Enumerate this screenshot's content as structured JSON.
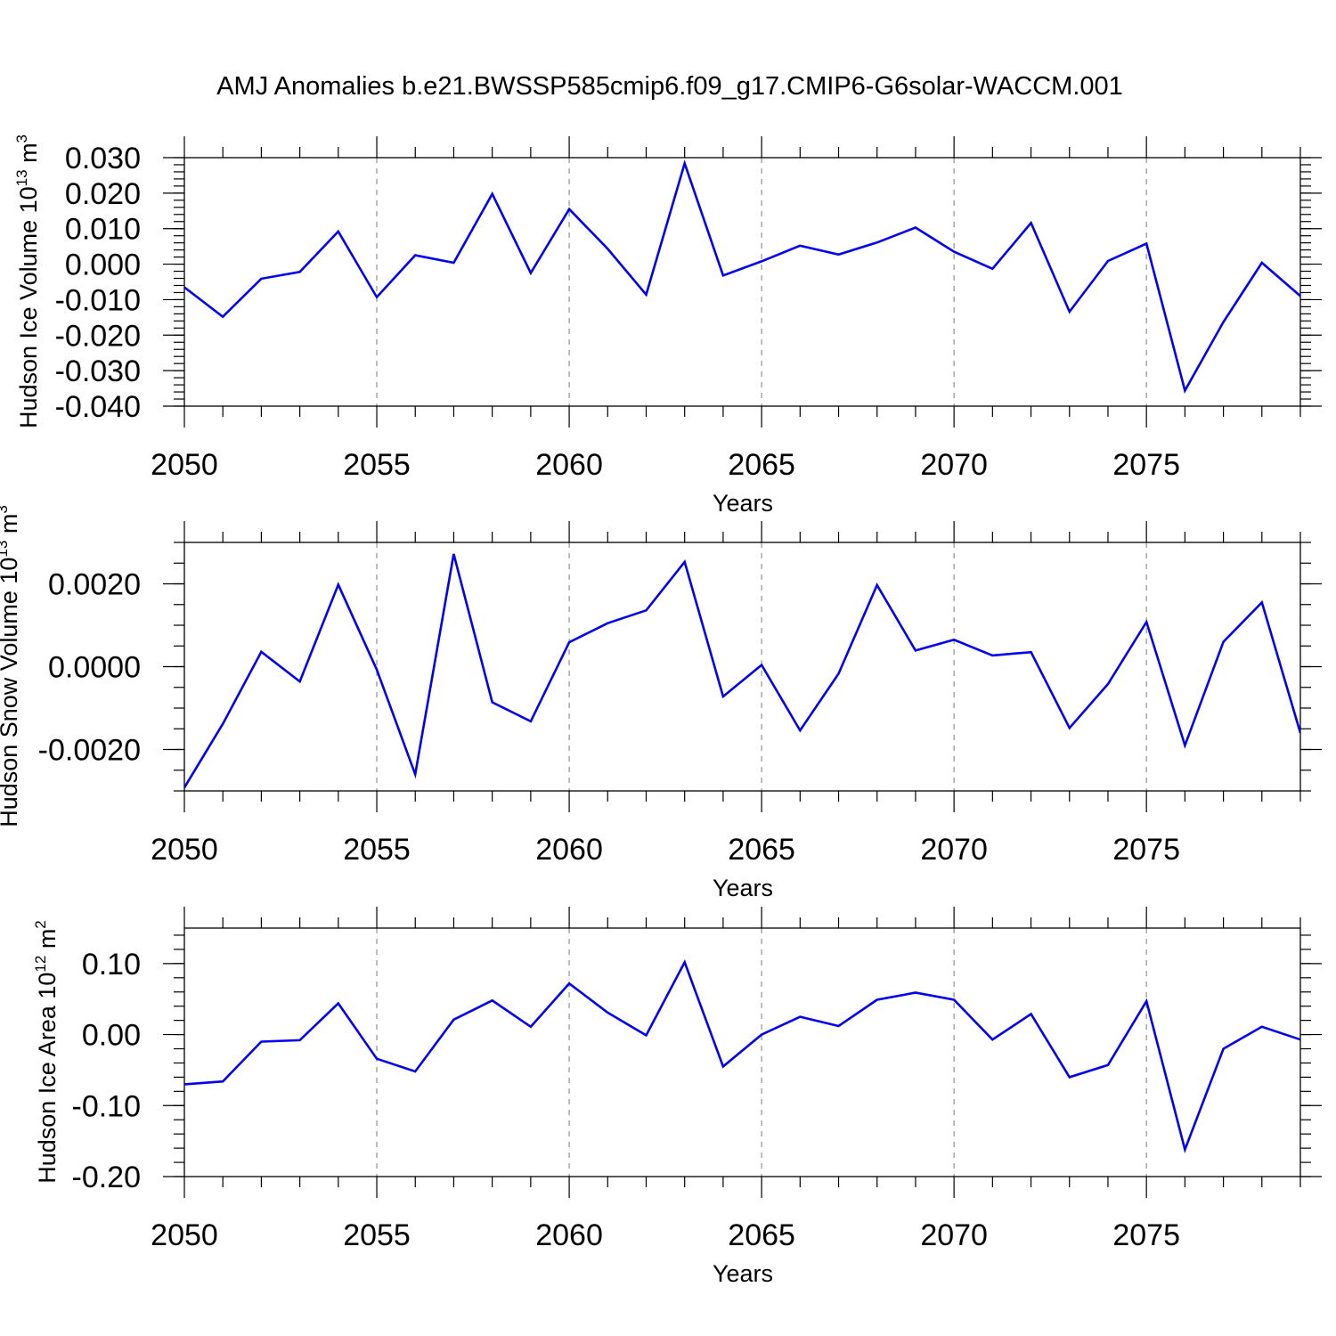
{
  "title": "AMJ Anomalies b.e21.BWSSP585cmip6.f09_g17.CMIP6-G6solar-WACCM.001",
  "line_color": "#0000ee",
  "chart_data": [
    {
      "type": "line",
      "ylabel_text": "Hudson Ice Volume 10",
      "ylabel_exp": "13",
      "ylabel_unit": "m",
      "ylabel_unit_exp": "3",
      "xlabel": "Years",
      "xlim": [
        2050,
        2079
      ],
      "ylim": [
        -0.04,
        0.03
      ],
      "xticks": [
        2050,
        2055,
        2060,
        2065,
        2070,
        2075
      ],
      "xtick_labels": [
        "2050",
        "2055",
        "2060",
        "2065",
        "2070",
        "2075"
      ],
      "yticks": [
        -0.04,
        -0.03,
        -0.02,
        -0.01,
        0.0,
        0.01,
        0.02,
        0.03
      ],
      "ytick_labels": [
        "-0.040",
        "-0.030",
        "-0.020",
        "-0.010",
        "0.000",
        "0.010",
        "0.020",
        "0.030"
      ],
      "yminor_step": 0.002,
      "x": [
        2050,
        2051,
        2052,
        2053,
        2054,
        2055,
        2056,
        2057,
        2058,
        2059,
        2060,
        2061,
        2062,
        2063,
        2064,
        2065,
        2066,
        2067,
        2068,
        2069,
        2070,
        2071,
        2072,
        2073,
        2074,
        2075,
        2076,
        2077,
        2078,
        2079
      ],
      "values": [
        -0.0065,
        -0.0148,
        -0.0041,
        -0.0022,
        0.0092,
        -0.0093,
        0.0025,
        0.0004,
        0.0198,
        -0.0025,
        0.0155,
        0.0043,
        -0.0086,
        0.0284,
        -0.0032,
        0.0008,
        0.0052,
        0.0027,
        0.0061,
        0.0103,
        0.0035,
        -0.0013,
        0.0116,
        -0.0134,
        0.0009,
        0.0058,
        -0.0356,
        -0.0163,
        0.0004,
        -0.009
      ]
    },
    {
      "type": "line",
      "ylabel_text": "Hudson Snow Volume 10",
      "ylabel_exp": "13",
      "ylabel_unit": "m",
      "ylabel_unit_exp": "3",
      "xlabel": "Years",
      "xlim": [
        2050,
        2079
      ],
      "ylim": [
        -0.003,
        0.003
      ],
      "xticks": [
        2050,
        2055,
        2060,
        2065,
        2070,
        2075
      ],
      "xtick_labels": [
        "2050",
        "2055",
        "2060",
        "2065",
        "2070",
        "2075"
      ],
      "yticks": [
        -0.002,
        0.0,
        0.002
      ],
      "ytick_labels": [
        "-0.0020",
        "0.0000",
        "0.0020"
      ],
      "yminor_step": 0.0005,
      "x": [
        2050,
        2051,
        2052,
        2053,
        2054,
        2055,
        2056,
        2057,
        2058,
        2059,
        2060,
        2061,
        2062,
        2063,
        2064,
        2065,
        2066,
        2067,
        2068,
        2069,
        2070,
        2071,
        2072,
        2073,
        2074,
        2075,
        2076,
        2077,
        2078,
        2079
      ],
      "values": [
        -0.00292,
        -0.00138,
        0.00036,
        -0.00036,
        0.00198,
        -7e-05,
        -0.0026,
        0.00272,
        -0.00086,
        -0.00132,
        0.00059,
        0.00105,
        0.00136,
        0.00253,
        -0.00072,
        4e-05,
        -0.00154,
        -0.00017,
        0.00197,
        0.00039,
        0.00065,
        0.00027,
        0.00035,
        -0.00148,
        -0.00042,
        0.00108,
        -0.0019,
        0.0006,
        0.00155,
        -0.0016
      ]
    },
    {
      "type": "line",
      "ylabel_text": "Hudson Ice Area 10",
      "ylabel_exp": "12",
      "ylabel_unit": "m",
      "ylabel_unit_exp": "2",
      "xlabel": "Years",
      "xlim": [
        2050,
        2079
      ],
      "ylim": [
        -0.2,
        0.15
      ],
      "xticks": [
        2050,
        2055,
        2060,
        2065,
        2070,
        2075
      ],
      "xtick_labels": [
        "2050",
        "2055",
        "2060",
        "2065",
        "2070",
        "2075"
      ],
      "yticks": [
        -0.2,
        -0.1,
        0.0,
        0.1
      ],
      "ytick_labels": [
        "-0.20",
        "-0.10",
        "0.00",
        "0.10"
      ],
      "yminor_step": 0.02,
      "x": [
        2050,
        2051,
        2052,
        2053,
        2054,
        2055,
        2056,
        2057,
        2058,
        2059,
        2060,
        2061,
        2062,
        2063,
        2064,
        2065,
        2066,
        2067,
        2068,
        2069,
        2070,
        2071,
        2072,
        2073,
        2074,
        2075,
        2076,
        2077,
        2078,
        2079
      ],
      "values": [
        -0.07,
        -0.066,
        -0.01,
        -0.008,
        0.044,
        -0.034,
        -0.052,
        0.021,
        0.048,
        0.011,
        0.072,
        0.031,
        -0.001,
        0.102,
        -0.045,
        0.0,
        0.025,
        0.012,
        0.049,
        0.059,
        0.049,
        -0.007,
        0.029,
        -0.06,
        -0.043,
        0.047,
        -0.162,
        -0.02,
        0.011,
        -0.007
      ]
    }
  ]
}
